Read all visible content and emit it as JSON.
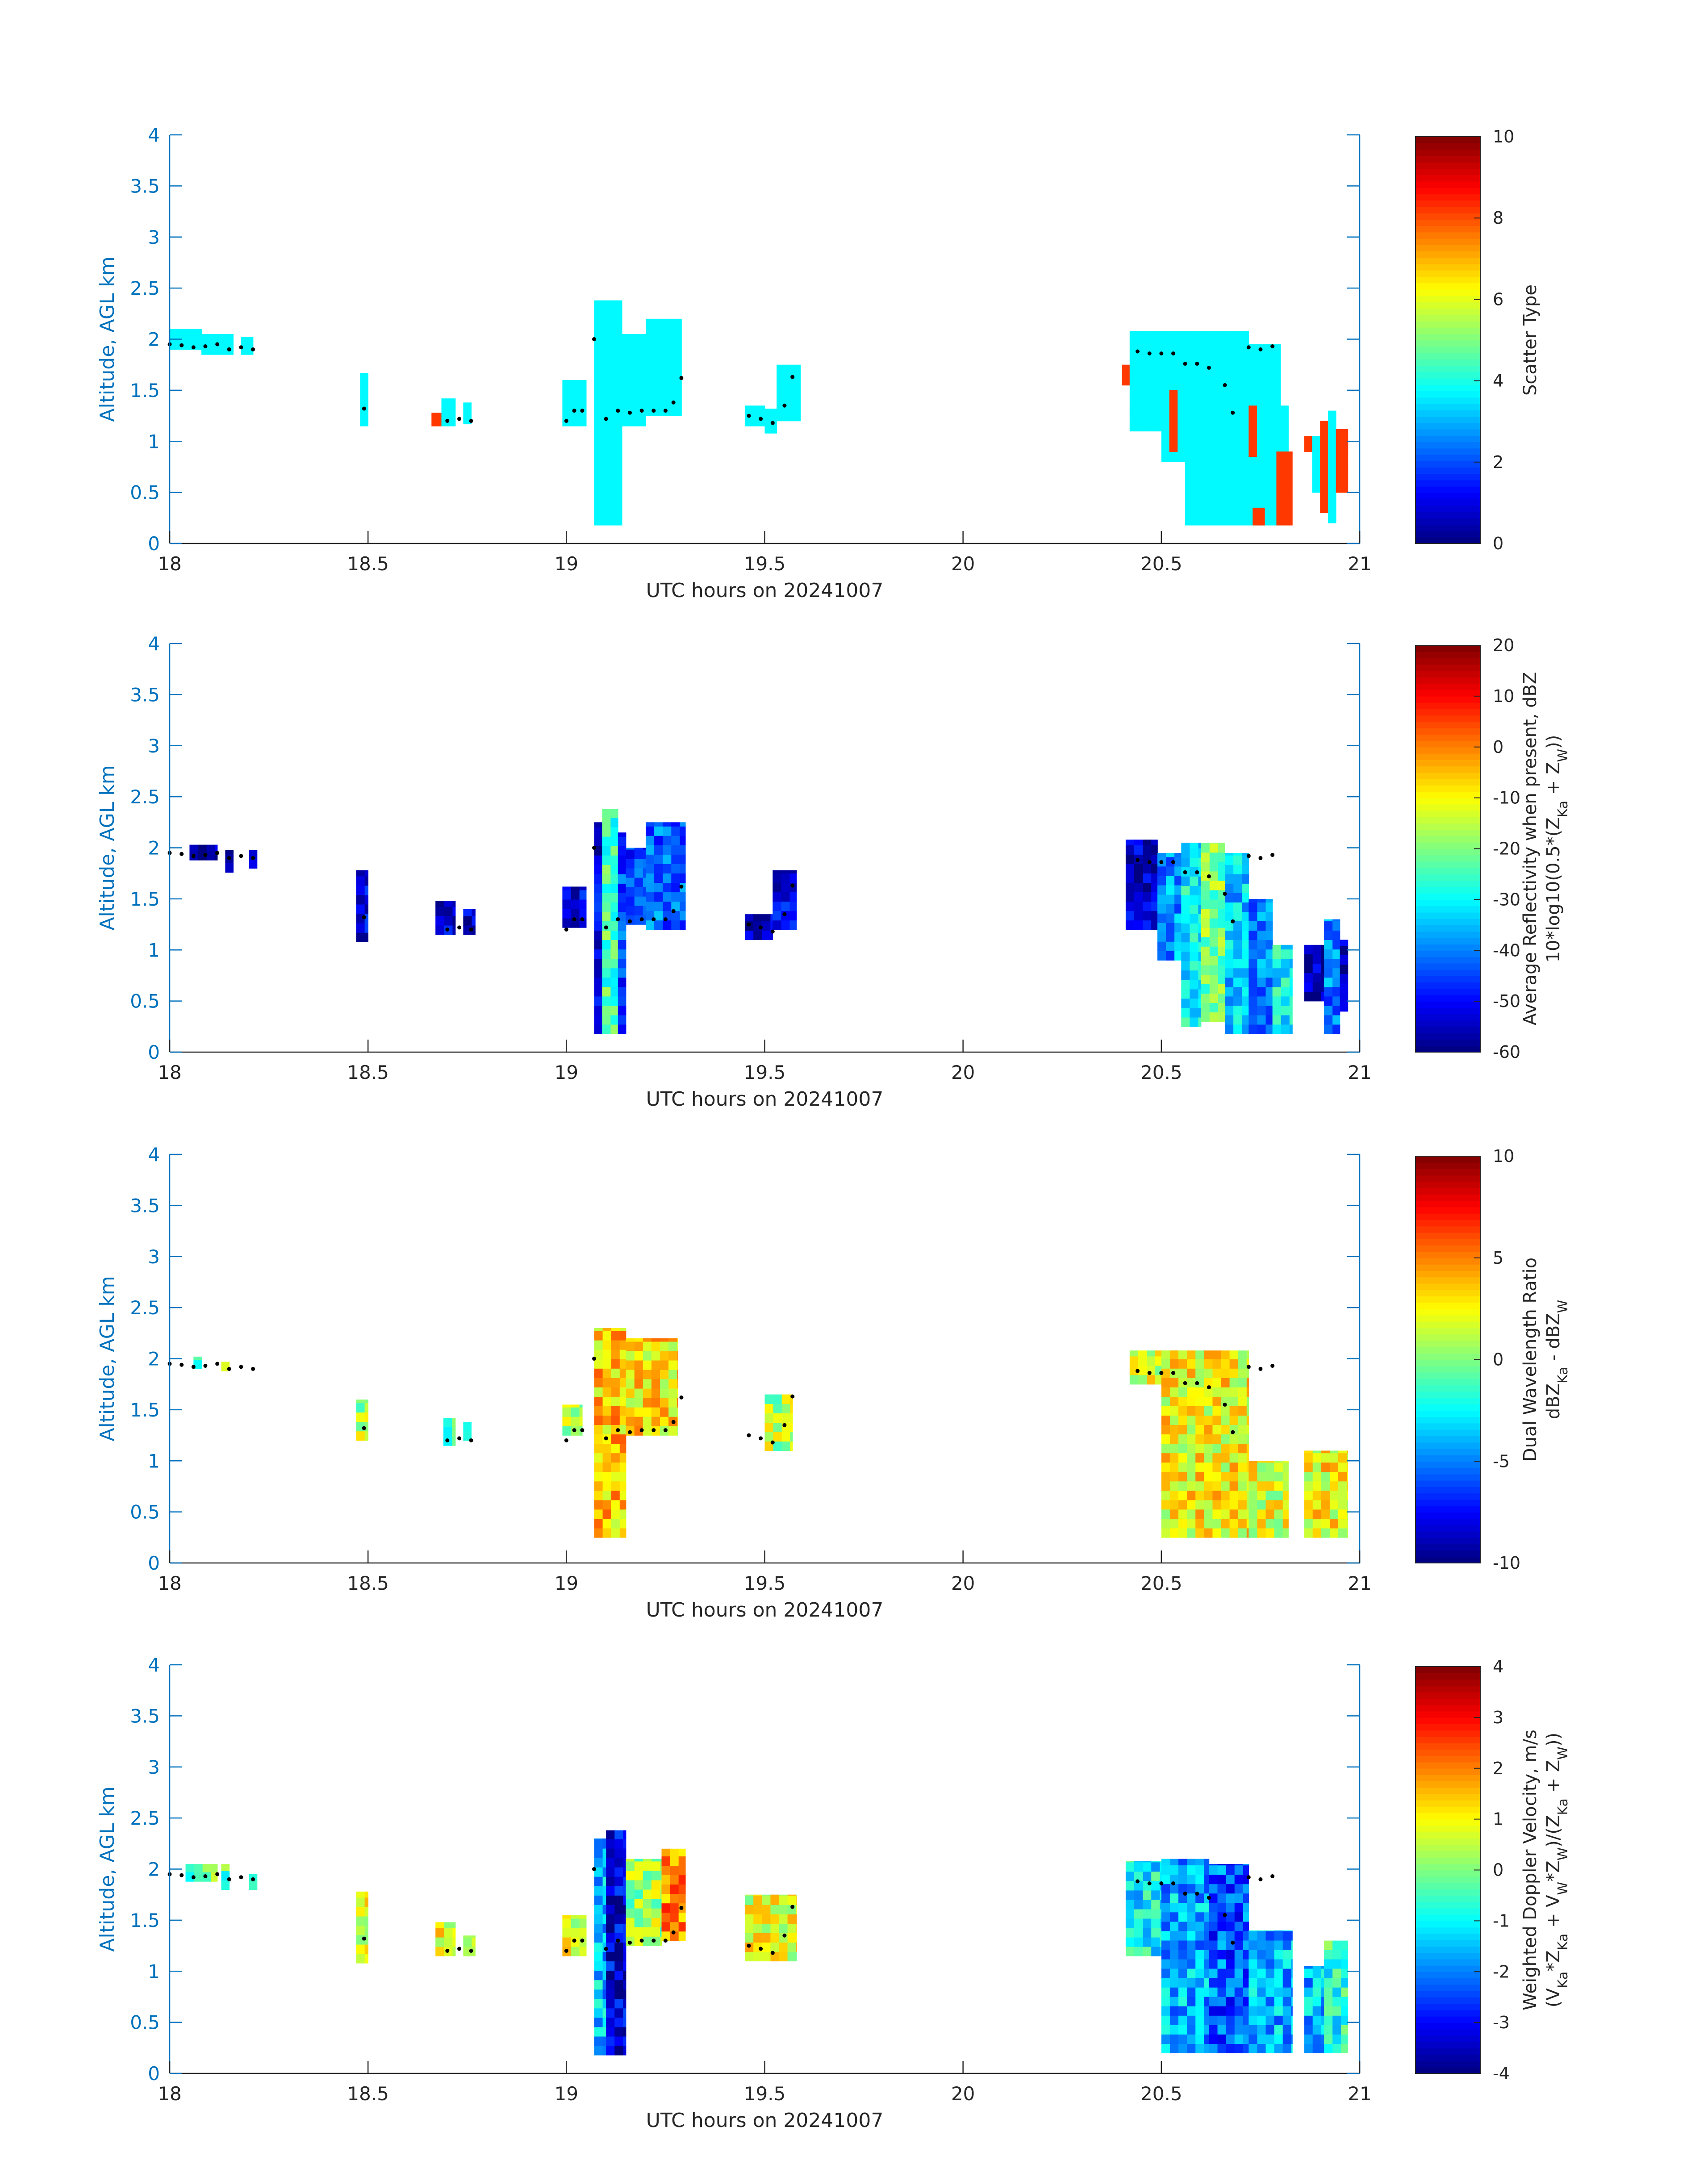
{
  "chart_data": [
    {
      "type": "heatmap",
      "xlabel": "UTC hours on 20241007",
      "ylabel": "Altitude, AGL km",
      "xlim": [
        18,
        21
      ],
      "ylim": [
        0,
        4
      ],
      "xticks": [
        "18",
        "18.5",
        "19",
        "19.5",
        "20",
        "20.5",
        "21"
      ],
      "yticks": [
        "0",
        "0.5",
        "1",
        "1.5",
        "2",
        "2.5",
        "3",
        "3.5",
        "4"
      ],
      "colorbar": {
        "label": "Scatter Type",
        "sublabel": "",
        "range": [
          0,
          10
        ],
        "ticks": [
          "0",
          "2",
          "4",
          "6",
          "8",
          "10"
        ]
      },
      "regions": [
        {
          "t0": 18.0,
          "t1": 18.08,
          "z0": 1.9,
          "z1": 2.1,
          "v": 3.7
        },
        {
          "t0": 18.08,
          "t1": 18.16,
          "z0": 1.85,
          "z1": 2.05,
          "v": 3.7
        },
        {
          "t0": 18.18,
          "t1": 18.21,
          "z0": 1.85,
          "z1": 2.02,
          "v": 3.7
        },
        {
          "t0": 18.48,
          "t1": 18.5,
          "z0": 1.15,
          "z1": 1.67,
          "v": 3.7
        },
        {
          "t0": 18.66,
          "t1": 18.685,
          "z0": 1.15,
          "z1": 1.28,
          "v": 8.2
        },
        {
          "t0": 18.685,
          "t1": 18.72,
          "z0": 1.15,
          "z1": 1.42,
          "v": 3.7
        },
        {
          "t0": 18.74,
          "t1": 18.76,
          "z0": 1.17,
          "z1": 1.38,
          "v": 3.7
        },
        {
          "t0": 18.99,
          "t1": 19.05,
          "z0": 1.15,
          "z1": 1.6,
          "v": 3.7
        },
        {
          "t0": 19.07,
          "t1": 19.14,
          "z0": 0.18,
          "z1": 2.38,
          "v": 3.7
        },
        {
          "t0": 19.14,
          "t1": 19.2,
          "z0": 1.15,
          "z1": 2.05,
          "v": 3.7
        },
        {
          "t0": 19.2,
          "t1": 19.29,
          "z0": 1.25,
          "z1": 2.2,
          "v": 3.7
        },
        {
          "t0": 19.45,
          "t1": 19.5,
          "z0": 1.15,
          "z1": 1.35,
          "v": 3.7
        },
        {
          "t0": 19.5,
          "t1": 19.53,
          "z0": 1.08,
          "z1": 1.32,
          "v": 3.7
        },
        {
          "t0": 19.53,
          "t1": 19.59,
          "z0": 1.2,
          "z1": 1.75,
          "v": 3.7
        },
        {
          "t0": 20.4,
          "t1": 20.42,
          "z0": 1.55,
          "z1": 1.75,
          "v": 8.2
        },
        {
          "t0": 20.42,
          "t1": 20.5,
          "z0": 1.1,
          "z1": 2.08,
          "v": 3.7
        },
        {
          "t0": 20.5,
          "t1": 20.56,
          "z0": 0.8,
          "z1": 2.08,
          "v": 3.7
        },
        {
          "t0": 20.56,
          "t1": 20.72,
          "z0": 0.18,
          "z1": 2.08,
          "v": 3.7
        },
        {
          "t0": 20.72,
          "t1": 20.8,
          "z0": 0.18,
          "z1": 1.95,
          "v": 3.7
        },
        {
          "t0": 20.8,
          "t1": 20.82,
          "z0": 0.8,
          "z1": 1.35,
          "v": 3.7
        },
        {
          "t0": 20.52,
          "t1": 20.54,
          "z0": 0.9,
          "z1": 1.5,
          "v": 8.2
        },
        {
          "t0": 20.72,
          "t1": 20.74,
          "z0": 0.85,
          "z1": 1.35,
          "v": 8.2
        },
        {
          "t0": 20.73,
          "t1": 20.76,
          "z0": 0.18,
          "z1": 0.35,
          "v": 8.2
        },
        {
          "t0": 20.79,
          "t1": 20.83,
          "z0": 0.18,
          "z1": 0.9,
          "v": 8.2
        },
        {
          "t0": 20.86,
          "t1": 20.88,
          "z0": 0.9,
          "z1": 1.05,
          "v": 8.2
        },
        {
          "t0": 20.88,
          "t1": 20.9,
          "z0": 0.5,
          "z1": 1.05,
          "v": 3.7
        },
        {
          "t0": 20.9,
          "t1": 20.92,
          "z0": 0.3,
          "z1": 1.2,
          "v": 8.2
        },
        {
          "t0": 20.92,
          "t1": 20.94,
          "z0": 0.2,
          "z1": 1.3,
          "v": 3.7
        },
        {
          "t0": 20.94,
          "t1": 20.97,
          "z0": 0.5,
          "z1": 1.12,
          "v": 8.2
        }
      ]
    },
    {
      "type": "heatmap",
      "xlabel": "UTC hours on 20241007",
      "ylabel": "Altitude, AGL km",
      "xlim": [
        18,
        21
      ],
      "ylim": [
        0,
        4
      ],
      "xticks": [
        "18",
        "18.5",
        "19",
        "19.5",
        "20",
        "20.5",
        "21"
      ],
      "yticks": [
        "0",
        "0.5",
        "1",
        "1.5",
        "2",
        "2.5",
        "3",
        "3.5",
        "4"
      ],
      "colorbar": {
        "label": "Average Reflectivity when present, dBZ",
        "sublabel": "10*log10(0.5*(Z",
        "range": [
          -60,
          20
        ],
        "ticks": [
          "-60",
          "-50",
          "-40",
          "-30",
          "-20",
          "-10",
          "0",
          "10",
          "20"
        ]
      },
      "regions": [
        {
          "t0": 18.05,
          "t1": 18.12,
          "z0": 1.88,
          "z1": 2.03,
          "v": -56
        },
        {
          "t0": 18.14,
          "t1": 18.16,
          "z0": 1.76,
          "z1": 1.98,
          "v": -56
        },
        {
          "t0": 18.2,
          "t1": 18.22,
          "z0": 1.8,
          "z1": 1.98,
          "v": -56
        },
        {
          "t0": 18.47,
          "t1": 18.5,
          "z0": 1.08,
          "z1": 1.78,
          "v": -52
        },
        {
          "t0": 18.67,
          "t1": 18.72,
          "z0": 1.15,
          "z1": 1.48,
          "v": -54
        },
        {
          "t0": 18.74,
          "t1": 18.77,
          "z0": 1.15,
          "z1": 1.4,
          "v": -54
        },
        {
          "t0": 18.99,
          "t1": 19.05,
          "z0": 1.22,
          "z1": 1.62,
          "v": -52
        },
        {
          "t0": 19.07,
          "t1": 19.09,
          "z0": 0.18,
          "z1": 2.25,
          "v": -52
        },
        {
          "t0": 19.09,
          "t1": 19.13,
          "z0": 0.18,
          "z1": 2.38,
          "v": -24
        },
        {
          "t0": 19.13,
          "t1": 19.15,
          "z0": 0.18,
          "z1": 2.15,
          "v": -44
        },
        {
          "t0": 19.15,
          "t1": 19.2,
          "z0": 1.25,
          "z1": 2.0,
          "v": -46
        },
        {
          "t0": 19.2,
          "t1": 19.3,
          "z0": 1.2,
          "z1": 2.25,
          "v": -42
        },
        {
          "t0": 19.45,
          "t1": 19.52,
          "z0": 1.1,
          "z1": 1.35,
          "v": -55
        },
        {
          "t0": 19.52,
          "t1": 19.58,
          "z0": 1.2,
          "z1": 1.78,
          "v": -52
        },
        {
          "t0": 20.41,
          "t1": 20.49,
          "z0": 1.2,
          "z1": 2.08,
          "v": -54
        },
        {
          "t0": 20.49,
          "t1": 20.55,
          "z0": 0.9,
          "z1": 1.95,
          "v": -38
        },
        {
          "t0": 20.55,
          "t1": 20.6,
          "z0": 0.25,
          "z1": 2.05,
          "v": -30
        },
        {
          "t0": 20.6,
          "t1": 20.66,
          "z0": 0.3,
          "z1": 2.05,
          "v": -20
        },
        {
          "t0": 20.66,
          "t1": 20.72,
          "z0": 0.18,
          "z1": 1.95,
          "v": -34
        },
        {
          "t0": 20.72,
          "t1": 20.78,
          "z0": 0.18,
          "z1": 1.5,
          "v": -40
        },
        {
          "t0": 20.78,
          "t1": 20.83,
          "z0": 0.18,
          "z1": 1.05,
          "v": -30
        },
        {
          "t0": 20.86,
          "t1": 20.91,
          "z0": 0.5,
          "z1": 1.05,
          "v": -55
        },
        {
          "t0": 20.91,
          "t1": 20.95,
          "z0": 0.18,
          "z1": 1.3,
          "v": -40
        },
        {
          "t0": 20.95,
          "t1": 20.97,
          "z0": 0.4,
          "z1": 1.1,
          "v": -56
        }
      ]
    },
    {
      "type": "heatmap",
      "xlabel": "UTC hours on 20241007",
      "ylabel": "Altitude, AGL km",
      "xlim": [
        18,
        21
      ],
      "ylim": [
        0,
        4
      ],
      "xticks": [
        "18",
        "18.5",
        "19",
        "19.5",
        "20",
        "20.5",
        "21"
      ],
      "yticks": [
        "0",
        "0.5",
        "1",
        "1.5",
        "2",
        "2.5",
        "3",
        "3.5",
        "4"
      ],
      "colorbar": {
        "label": "Dual Wavelength Ratio",
        "sublabel": "dBZ",
        "range": [
          -10,
          10
        ],
        "ticks": [
          "-10",
          "-5",
          "0",
          "5",
          "10"
        ]
      },
      "regions": [
        {
          "t0": 18.06,
          "t1": 18.08,
          "z0": 1.9,
          "z1": 2.02,
          "v": -3
        },
        {
          "t0": 18.13,
          "t1": 18.15,
          "z0": 1.88,
          "z1": 1.97,
          "v": 1
        },
        {
          "t0": 18.47,
          "t1": 18.5,
          "z0": 1.2,
          "z1": 1.6,
          "v": 1
        },
        {
          "t0": 18.69,
          "t1": 18.72,
          "z0": 1.15,
          "z1": 1.42,
          "v": -1
        },
        {
          "t0": 18.74,
          "t1": 18.76,
          "z0": 1.2,
          "z1": 1.38,
          "v": -3
        },
        {
          "t0": 18.99,
          "t1": 19.04,
          "z0": 1.25,
          "z1": 1.55,
          "v": 1
        },
        {
          "t0": 19.07,
          "t1": 19.15,
          "z0": 0.25,
          "z1": 2.3,
          "v": 3.5
        },
        {
          "t0": 19.15,
          "t1": 19.28,
          "z0": 1.25,
          "z1": 2.2,
          "v": 3
        },
        {
          "t0": 19.5,
          "t1": 19.57,
          "z0": 1.1,
          "z1": 1.65,
          "v": 1
        },
        {
          "t0": 20.42,
          "t1": 20.55,
          "z0": 1.75,
          "z1": 2.08,
          "v": 2
        },
        {
          "t0": 20.5,
          "t1": 20.72,
          "z0": 0.25,
          "z1": 2.08,
          "v": 2.5
        },
        {
          "t0": 20.72,
          "t1": 20.82,
          "z0": 0.25,
          "z1": 1.0,
          "v": 2
        },
        {
          "t0": 20.86,
          "t1": 20.97,
          "z0": 0.25,
          "z1": 1.1,
          "v": 2.5
        }
      ]
    },
    {
      "type": "heatmap",
      "xlabel": "UTC hours on 20241007",
      "ylabel": "Altitude, AGL km",
      "xlim": [
        18,
        21
      ],
      "ylim": [
        0,
        4
      ],
      "xticks": [
        "18",
        "18.5",
        "19",
        "19.5",
        "20",
        "20.5",
        "21"
      ],
      "yticks": [
        "0",
        "0.5",
        "1",
        "1.5",
        "2",
        "2.5",
        "3",
        "3.5",
        "4"
      ],
      "colorbar": {
        "label": "Weighted Doppler Velocity, m/s",
        "sublabel": "(V",
        "range": [
          -4,
          4
        ],
        "ticks": [
          "-4",
          "-3",
          "-2",
          "-1",
          "0",
          "1",
          "2",
          "3",
          "4"
        ]
      },
      "regions": [
        {
          "t0": 18.04,
          "t1": 18.12,
          "z0": 1.88,
          "z1": 2.05,
          "v": -0.3
        },
        {
          "t0": 18.13,
          "t1": 18.15,
          "z0": 1.8,
          "z1": 2.05,
          "v": -0.5
        },
        {
          "t0": 18.2,
          "t1": 18.22,
          "z0": 1.8,
          "z1": 1.95,
          "v": -0.5
        },
        {
          "t0": 18.47,
          "t1": 18.5,
          "z0": 1.08,
          "z1": 1.78,
          "v": 0.8
        },
        {
          "t0": 18.67,
          "t1": 18.72,
          "z0": 1.15,
          "z1": 1.48,
          "v": 0.8
        },
        {
          "t0": 18.74,
          "t1": 18.77,
          "z0": 1.15,
          "z1": 1.35,
          "v": 0.6
        },
        {
          "t0": 18.99,
          "t1": 19.05,
          "z0": 1.15,
          "z1": 1.55,
          "v": 0.7
        },
        {
          "t0": 19.07,
          "t1": 19.1,
          "z0": 0.18,
          "z1": 2.3,
          "v": -1.5
        },
        {
          "t0": 19.1,
          "t1": 19.15,
          "z0": 0.18,
          "z1": 2.38,
          "v": -3.3
        },
        {
          "t0": 19.15,
          "t1": 19.24,
          "z0": 1.25,
          "z1": 2.1,
          "v": 0.3
        },
        {
          "t0": 19.24,
          "t1": 19.3,
          "z0": 1.3,
          "z1": 2.2,
          "v": 2.0
        },
        {
          "t0": 19.45,
          "t1": 19.58,
          "z0": 1.1,
          "z1": 1.75,
          "v": 0.8
        },
        {
          "t0": 20.41,
          "t1": 20.5,
          "z0": 1.15,
          "z1": 2.08,
          "v": -1.0
        },
        {
          "t0": 20.5,
          "t1": 20.62,
          "z0": 0.2,
          "z1": 2.1,
          "v": -1.6
        },
        {
          "t0": 20.62,
          "t1": 20.72,
          "z0": 0.2,
          "z1": 2.05,
          "v": -2.3
        },
        {
          "t0": 20.72,
          "t1": 20.83,
          "z0": 0.2,
          "z1": 1.4,
          "v": -1.6
        },
        {
          "t0": 20.86,
          "t1": 20.91,
          "z0": 0.2,
          "z1": 1.05,
          "v": -1.5
        },
        {
          "t0": 20.91,
          "t1": 20.97,
          "z0": 0.2,
          "z1": 1.3,
          "v": -0.7
        }
      ]
    }
  ],
  "cloud_base_dots": [
    [
      18.0,
      1.95
    ],
    [
      18.03,
      1.94
    ],
    [
      18.06,
      1.92
    ],
    [
      18.09,
      1.93
    ],
    [
      18.12,
      1.95
    ],
    [
      18.15,
      1.9
    ],
    [
      18.18,
      1.92
    ],
    [
      18.21,
      1.9
    ],
    [
      18.49,
      1.32
    ],
    [
      18.7,
      1.2
    ],
    [
      18.73,
      1.22
    ],
    [
      18.76,
      1.2
    ],
    [
      19.0,
      1.2
    ],
    [
      19.02,
      1.3
    ],
    [
      19.04,
      1.3
    ],
    [
      19.07,
      2.0
    ],
    [
      19.1,
      1.22
    ],
    [
      19.13,
      1.3
    ],
    [
      19.16,
      1.28
    ],
    [
      19.19,
      1.3
    ],
    [
      19.22,
      1.3
    ],
    [
      19.25,
      1.3
    ],
    [
      19.27,
      1.38
    ],
    [
      19.29,
      1.62
    ],
    [
      19.46,
      1.25
    ],
    [
      19.49,
      1.22
    ],
    [
      19.52,
      1.18
    ],
    [
      19.55,
      1.35
    ],
    [
      19.57,
      1.63
    ],
    [
      20.44,
      1.88
    ],
    [
      20.47,
      1.86
    ],
    [
      20.5,
      1.86
    ],
    [
      20.53,
      1.86
    ],
    [
      20.56,
      1.76
    ],
    [
      20.59,
      1.76
    ],
    [
      20.62,
      1.72
    ],
    [
      20.66,
      1.55
    ],
    [
      20.68,
      1.28
    ],
    [
      20.72,
      1.92
    ],
    [
      20.75,
      1.9
    ],
    [
      20.78,
      1.93
    ]
  ]
}
